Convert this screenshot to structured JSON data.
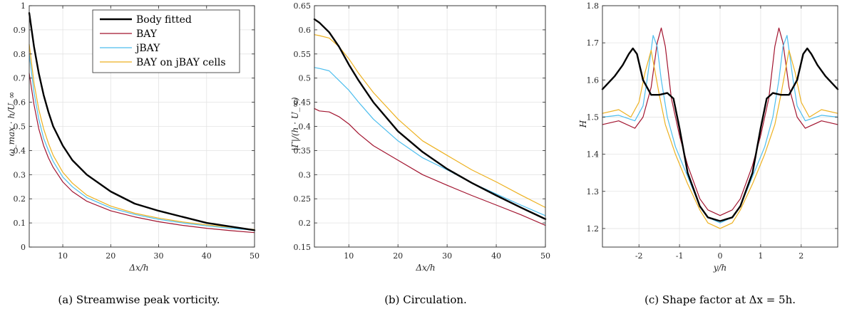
{
  "colors": {
    "body_fitted": "#000000",
    "bay": "#A2142F",
    "jbay": "#4DBEEE",
    "bay_on_jbay": "#EDB120"
  },
  "legend": [
    "Body fitted",
    "BAY",
    "jBAY",
    "BAY on jBAY cells"
  ],
  "chart_data": [
    {
      "type": "line",
      "caption": "(a) Streamwise peak vorticity.",
      "xlabel": "Δx/h",
      "ylabel": "ω_max · h/U_∞",
      "xlim": [
        3,
        50
      ],
      "ylim": [
        0,
        1
      ],
      "xticks": [
        10,
        20,
        30,
        40,
        50
      ],
      "yticks": [
        0,
        0.1,
        0.2,
        0.3,
        0.4,
        0.5,
        0.6,
        0.7,
        0.8,
        0.9,
        1
      ],
      "ytick_labels": [
        "0",
        "0.1",
        "0.2",
        "0.3",
        "0.4",
        "0.5",
        "0.6",
        "0.7",
        "0.8",
        "0.9",
        "1"
      ],
      "grid": true,
      "legend_position": "top-right",
      "series": [
        {
          "name": "BAY",
          "color_key": "bay",
          "width": 1.2,
          "x": [
            3,
            4,
            5,
            6,
            7,
            8,
            10,
            12,
            15,
            20,
            25,
            30,
            35,
            40,
            45,
            50
          ],
          "y": [
            0.72,
            0.59,
            0.49,
            0.42,
            0.37,
            0.33,
            0.27,
            0.23,
            0.19,
            0.15,
            0.125,
            0.105,
            0.09,
            0.078,
            0.068,
            0.06
          ]
        },
        {
          "name": "jBAY",
          "color_key": "jbay",
          "width": 1.2,
          "x": [
            3,
            4,
            5,
            6,
            7,
            8,
            10,
            12,
            15,
            20,
            25,
            30,
            35,
            40,
            45,
            50
          ],
          "y": [
            0.8,
            0.64,
            0.53,
            0.45,
            0.4,
            0.355,
            0.29,
            0.25,
            0.205,
            0.162,
            0.135,
            0.115,
            0.1,
            0.088,
            0.078,
            0.07
          ]
        },
        {
          "name": "BAY on jBAY cells",
          "color_key": "bay_on_jbay",
          "width": 1.2,
          "x": [
            3,
            4,
            5,
            6,
            7,
            8,
            10,
            12,
            15,
            20,
            25,
            30,
            35,
            40,
            45,
            50
          ],
          "y": [
            0.84,
            0.68,
            0.57,
            0.49,
            0.43,
            0.38,
            0.31,
            0.265,
            0.215,
            0.17,
            0.14,
            0.12,
            0.104,
            0.092,
            0.082,
            0.073
          ]
        },
        {
          "name": "Body fitted",
          "color_key": "body_fitted",
          "width": 2.4,
          "x": [
            3,
            4,
            5,
            6,
            7,
            8,
            10,
            12,
            15,
            20,
            25,
            30,
            35,
            40,
            45,
            50
          ],
          "y": [
            0.97,
            0.83,
            0.72,
            0.63,
            0.56,
            0.5,
            0.42,
            0.36,
            0.3,
            0.23,
            0.18,
            0.15,
            0.125,
            0.1,
            0.085,
            0.07
          ]
        }
      ]
    },
    {
      "type": "line",
      "caption": "(b) Circulation.",
      "xlabel": "Δx/h",
      "ylabel": "|Γ|/(h · U_∞)",
      "xlim": [
        3,
        50
      ],
      "ylim": [
        0.15,
        0.65
      ],
      "xticks": [
        10,
        20,
        30,
        40,
        50
      ],
      "yticks": [
        0.15,
        0.2,
        0.25,
        0.3,
        0.35,
        0.4,
        0.45,
        0.5,
        0.55,
        0.6,
        0.65
      ],
      "ytick_labels": [
        "0.15",
        "0.2",
        "0.25",
        "0.3",
        "0.35",
        "0.4",
        "0.45",
        "0.5",
        "0.55",
        "0.6",
        "0.65"
      ],
      "grid": true,
      "legend_position": "none",
      "series": [
        {
          "name": "BAY",
          "color_key": "bay",
          "width": 1.2,
          "x": [
            3,
            4,
            6,
            8,
            10,
            12,
            15,
            20,
            25,
            30,
            35,
            40,
            45,
            50
          ],
          "y": [
            0.437,
            0.432,
            0.43,
            0.42,
            0.405,
            0.385,
            0.36,
            0.33,
            0.3,
            0.278,
            0.257,
            0.237,
            0.217,
            0.195
          ]
        },
        {
          "name": "jBAY",
          "color_key": "jbay",
          "width": 1.2,
          "x": [
            3,
            4,
            6,
            8,
            10,
            12,
            15,
            20,
            25,
            30,
            35,
            40,
            45,
            50
          ],
          "y": [
            0.522,
            0.52,
            0.515,
            0.495,
            0.475,
            0.45,
            0.415,
            0.37,
            0.335,
            0.31,
            0.283,
            0.26,
            0.237,
            0.215
          ]
        },
        {
          "name": "BAY on jBAY cells",
          "color_key": "bay_on_jbay",
          "width": 1.2,
          "x": [
            3,
            4,
            6,
            8,
            10,
            12,
            15,
            20,
            25,
            30,
            35,
            40,
            45,
            50
          ],
          "y": [
            0.59,
            0.588,
            0.583,
            0.565,
            0.54,
            0.51,
            0.47,
            0.415,
            0.37,
            0.34,
            0.31,
            0.285,
            0.258,
            0.232
          ]
        },
        {
          "name": "Body fitted",
          "color_key": "body_fitted",
          "width": 2.4,
          "x": [
            3,
            4,
            6,
            8,
            10,
            12,
            15,
            20,
            25,
            30,
            35,
            40,
            45,
            50
          ],
          "y": [
            0.622,
            0.615,
            0.595,
            0.565,
            0.528,
            0.495,
            0.45,
            0.39,
            0.347,
            0.312,
            0.283,
            0.257,
            0.232,
            0.208
          ]
        }
      ]
    },
    {
      "type": "line",
      "caption": "(c) Shape factor at Δx = 5h.",
      "xlabel": "y/h",
      "ylabel": "H",
      "xlim": [
        -2.9,
        2.9
      ],
      "ylim": [
        1.15,
        1.8
      ],
      "xticks": [
        -2,
        -1,
        0,
        1,
        2
      ],
      "yticks": [
        1.2,
        1.3,
        1.4,
        1.5,
        1.6,
        1.7,
        1.8
      ],
      "ytick_labels": [
        "1.2",
        "1.3",
        "1.4",
        "1.5",
        "1.6",
        "1.7",
        "1.8"
      ],
      "grid": true,
      "legend_position": "none",
      "series": [
        {
          "name": "BAY",
          "color_key": "bay",
          "width": 1.2,
          "x": [
            -2.9,
            -2.5,
            -2.1,
            -1.9,
            -1.7,
            -1.55,
            -1.45,
            -1.35,
            -1.2,
            -1.0,
            -0.8,
            -0.5,
            -0.3,
            0,
            0.3,
            0.5,
            0.8,
            1.0,
            1.2,
            1.35,
            1.45,
            1.55,
            1.7,
            1.9,
            2.1,
            2.5,
            2.9
          ],
          "y": [
            1.48,
            1.49,
            1.47,
            1.5,
            1.58,
            1.7,
            1.74,
            1.69,
            1.55,
            1.45,
            1.37,
            1.28,
            1.25,
            1.235,
            1.25,
            1.28,
            1.37,
            1.45,
            1.55,
            1.69,
            1.74,
            1.7,
            1.58,
            1.5,
            1.47,
            1.49,
            1.48
          ]
        },
        {
          "name": "jBAY",
          "color_key": "jbay",
          "width": 1.2,
          "x": [
            -2.9,
            -2.5,
            -2.1,
            -1.9,
            -1.8,
            -1.65,
            -1.55,
            -1.45,
            -1.3,
            -1.1,
            -0.8,
            -0.5,
            -0.3,
            0,
            0.3,
            0.5,
            0.8,
            1.1,
            1.3,
            1.45,
            1.55,
            1.65,
            1.8,
            1.9,
            2.1,
            2.5,
            2.9
          ],
          "y": [
            1.5,
            1.505,
            1.49,
            1.53,
            1.6,
            1.72,
            1.69,
            1.6,
            1.5,
            1.42,
            1.34,
            1.26,
            1.23,
            1.215,
            1.23,
            1.26,
            1.34,
            1.42,
            1.5,
            1.6,
            1.69,
            1.72,
            1.6,
            1.53,
            1.49,
            1.505,
            1.5
          ]
        },
        {
          "name": "BAY on jBAY cells",
          "color_key": "bay_on_jbay",
          "width": 1.2,
          "x": [
            -2.9,
            -2.5,
            -2.2,
            -2.0,
            -1.85,
            -1.7,
            -1.6,
            -1.5,
            -1.35,
            -1.1,
            -0.8,
            -0.5,
            -0.3,
            0,
            0.3,
            0.5,
            0.8,
            1.1,
            1.35,
            1.5,
            1.6,
            1.7,
            1.85,
            2.0,
            2.2,
            2.5,
            2.9
          ],
          "y": [
            1.51,
            1.52,
            1.5,
            1.54,
            1.62,
            1.68,
            1.62,
            1.56,
            1.48,
            1.4,
            1.32,
            1.25,
            1.215,
            1.2,
            1.215,
            1.25,
            1.32,
            1.4,
            1.48,
            1.56,
            1.62,
            1.68,
            1.62,
            1.54,
            1.5,
            1.52,
            1.51
          ]
        },
        {
          "name": "Body fitted",
          "color_key": "body_fitted",
          "width": 2.4,
          "x": [
            -2.9,
            -2.6,
            -2.4,
            -2.25,
            -2.15,
            -2.05,
            -1.9,
            -1.7,
            -1.5,
            -1.3,
            -1.15,
            -1.0,
            -0.8,
            -0.5,
            -0.3,
            0,
            0.3,
            0.5,
            0.8,
            1.0,
            1.15,
            1.3,
            1.5,
            1.7,
            1.9,
            2.05,
            2.15,
            2.25,
            2.4,
            2.6,
            2.9
          ],
          "y": [
            1.575,
            1.61,
            1.64,
            1.67,
            1.685,
            1.67,
            1.6,
            1.56,
            1.56,
            1.565,
            1.55,
            1.47,
            1.35,
            1.26,
            1.23,
            1.22,
            1.23,
            1.26,
            1.35,
            1.47,
            1.55,
            1.565,
            1.56,
            1.56,
            1.6,
            1.67,
            1.685,
            1.67,
            1.64,
            1.61,
            1.575
          ]
        }
      ]
    }
  ]
}
